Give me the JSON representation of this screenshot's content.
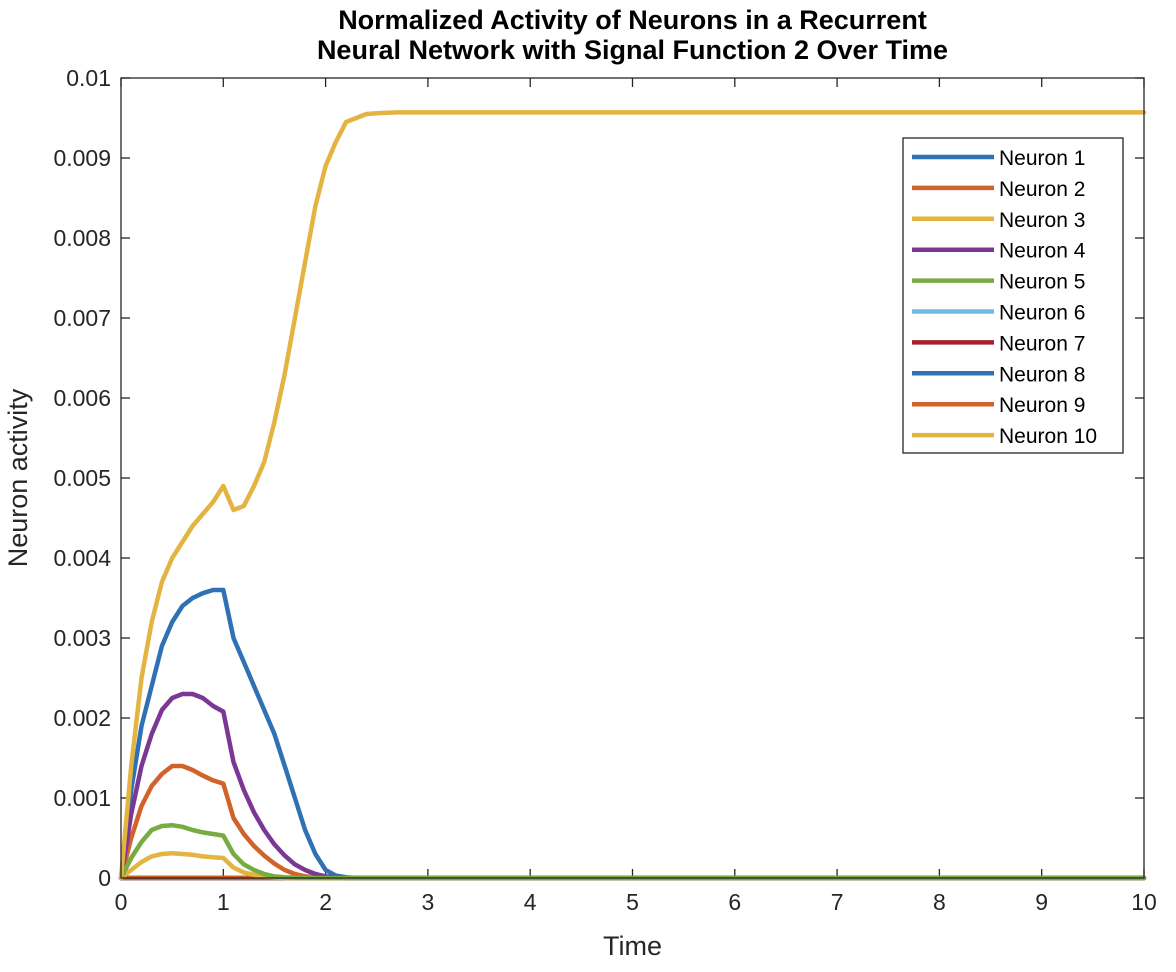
{
  "chart_data": {
    "type": "line",
    "title": [
      "Normalized Activity of Neurons in a Recurrent",
      "Neural Network with Signal Function 2 Over Time"
    ],
    "xlabel": "Time",
    "ylabel": "Neuron activity",
    "xlim": [
      0,
      10
    ],
    "ylim": [
      0,
      0.01
    ],
    "xticks": [
      0,
      1,
      2,
      3,
      4,
      5,
      6,
      7,
      8,
      9,
      10
    ],
    "xtick_labels": [
      "0",
      "1",
      "2",
      "3",
      "4",
      "5",
      "6",
      "7",
      "8",
      "9",
      "10"
    ],
    "yticks": [
      0,
      0.001,
      0.002,
      0.003,
      0.004,
      0.005,
      0.006,
      0.007,
      0.008,
      0.009,
      0.01
    ],
    "ytick_labels": [
      "0",
      "0.001",
      "0.002",
      "0.003",
      "0.004",
      "0.005",
      "0.006",
      "0.007",
      "0.008",
      "0.009",
      "0.01"
    ],
    "grid": false,
    "legend_position": "top-right",
    "series": [
      {
        "name": "Neuron 1",
        "color": "#2f71b4",
        "x": [
          0,
          0.1,
          0.2,
          0.3,
          0.4,
          0.5,
          0.6,
          0.7,
          0.8,
          0.9,
          1.0,
          1.1,
          1.2,
          1.3,
          1.4,
          1.5,
          1.6,
          1.7,
          1.8,
          1.9,
          2.0,
          2.1,
          2.2,
          2.3,
          2.5,
          10
        ],
        "y": [
          0,
          0.0011,
          0.0019,
          0.0024,
          0.0029,
          0.0032,
          0.0034,
          0.0035,
          0.00356,
          0.0036,
          0.0036,
          0.003,
          0.0027,
          0.0024,
          0.0021,
          0.0018,
          0.0014,
          0.001,
          0.0006,
          0.0003,
          0.0001,
          3e-05,
          1e-05,
          0,
          0,
          0
        ]
      },
      {
        "name": "Neuron 2",
        "color": "#d1622a",
        "x": [
          0,
          0.1,
          0.2,
          0.3,
          0.4,
          0.5,
          0.6,
          0.7,
          0.8,
          0.9,
          1.0,
          1.1,
          1.2,
          1.3,
          1.4,
          1.5,
          1.6,
          1.7,
          1.8,
          2.0,
          2.2,
          10
        ],
        "y": [
          0,
          0.0005,
          0.0009,
          0.00115,
          0.0013,
          0.0014,
          0.0014,
          0.00135,
          0.00128,
          0.00122,
          0.00118,
          0.00075,
          0.00055,
          0.0004,
          0.00028,
          0.00018,
          0.0001,
          5e-05,
          2e-05,
          0,
          0,
          0
        ]
      },
      {
        "name": "Neuron 3",
        "color": "#e4b443",
        "x": [
          0,
          0.1,
          0.2,
          0.3,
          0.4,
          0.5,
          0.6,
          0.7,
          0.8,
          0.9,
          1.0,
          1.1,
          1.2,
          1.3,
          1.4,
          1.5,
          1.6,
          1.8,
          2.0,
          10
        ],
        "y": [
          0,
          0.0001,
          0.0002,
          0.00027,
          0.0003,
          0.00031,
          0.0003,
          0.00029,
          0.00027,
          0.00026,
          0.00025,
          0.00013,
          7e-05,
          4e-05,
          2e-05,
          1e-05,
          0,
          0,
          0,
          0
        ]
      },
      {
        "name": "Neuron 4",
        "color": "#7b3794",
        "x": [
          0,
          0.1,
          0.2,
          0.3,
          0.4,
          0.5,
          0.6,
          0.7,
          0.8,
          0.9,
          1.0,
          1.1,
          1.2,
          1.3,
          1.4,
          1.5,
          1.6,
          1.7,
          1.8,
          1.9,
          2.0,
          2.1,
          2.2,
          10
        ],
        "y": [
          0,
          0.0008,
          0.0014,
          0.0018,
          0.0021,
          0.00225,
          0.0023,
          0.0023,
          0.00225,
          0.00215,
          0.00208,
          0.00145,
          0.0011,
          0.00082,
          0.0006,
          0.00042,
          0.00028,
          0.00017,
          0.0001,
          5e-05,
          2e-05,
          1e-05,
          0,
          0
        ]
      },
      {
        "name": "Neuron 5",
        "color": "#77ac42",
        "x": [
          0,
          0.1,
          0.2,
          0.3,
          0.4,
          0.5,
          0.6,
          0.7,
          0.8,
          0.9,
          1.0,
          1.1,
          1.2,
          1.3,
          1.4,
          1.5,
          1.6,
          1.8,
          2.0,
          10
        ],
        "y": [
          0,
          0.00025,
          0.00045,
          0.0006,
          0.00065,
          0.00066,
          0.00064,
          0.0006,
          0.00057,
          0.00055,
          0.00053,
          0.0003,
          0.00017,
          0.0001,
          5e-05,
          2e-05,
          1e-05,
          0,
          0,
          0
        ]
      },
      {
        "name": "Neuron 6",
        "color": "#6fbbe8",
        "x": [
          0,
          10
        ],
        "y": [
          0,
          0
        ]
      },
      {
        "name": "Neuron 7",
        "color": "#a2232f",
        "x": [
          0,
          10
        ],
        "y": [
          0,
          0
        ]
      },
      {
        "name": "Neuron 8",
        "color": "#2f71b4",
        "x": [
          0,
          10
        ],
        "y": [
          0,
          0
        ]
      },
      {
        "name": "Neuron 9",
        "color": "#d1622a",
        "x": [
          0,
          10
        ],
        "y": [
          0,
          0
        ]
      },
      {
        "name": "Neuron 10",
        "color": "#e4b443",
        "x": [
          0,
          0.1,
          0.2,
          0.3,
          0.4,
          0.5,
          0.6,
          0.7,
          0.8,
          0.9,
          1.0,
          1.1,
          1.2,
          1.3,
          1.4,
          1.5,
          1.6,
          1.7,
          1.8,
          1.9,
          2.0,
          2.1,
          2.2,
          2.3,
          2.4,
          2.5,
          2.7,
          3.0,
          4.0,
          10
        ],
        "y": [
          0,
          0.0014,
          0.0025,
          0.0032,
          0.0037,
          0.004,
          0.0042,
          0.0044,
          0.00455,
          0.0047,
          0.0049,
          0.0046,
          0.00465,
          0.0049,
          0.0052,
          0.0057,
          0.0063,
          0.007,
          0.0077,
          0.0084,
          0.0089,
          0.0092,
          0.00945,
          0.0095,
          0.00955,
          0.00956,
          0.00957,
          0.00957,
          0.00957,
          0.00957
        ]
      }
    ]
  }
}
